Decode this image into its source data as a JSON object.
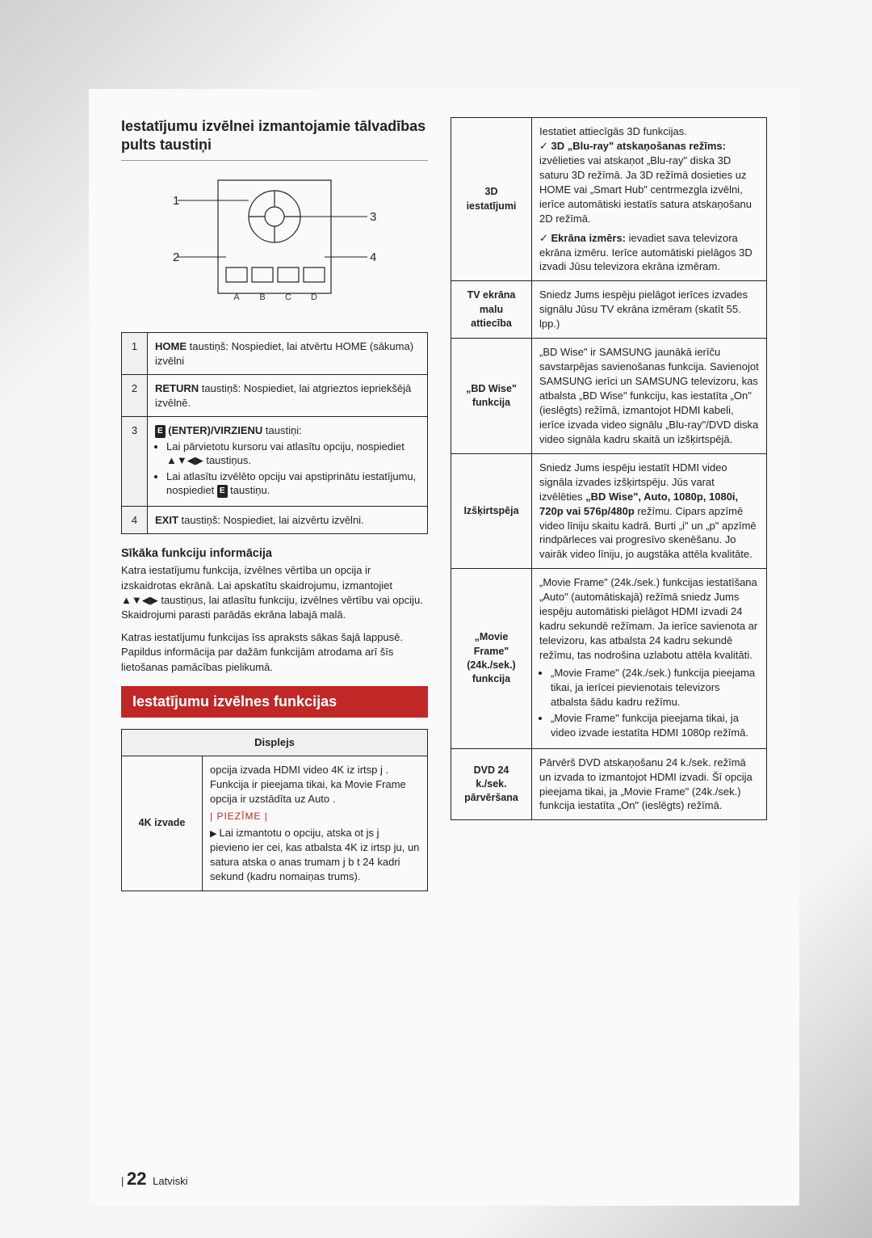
{
  "heading_remote": "Iestatījumu izvēlnei izmantojamie tālvadības pults taustiņi",
  "diagram": {
    "labels": {
      "n1": "1",
      "n2": "2",
      "n3": "3",
      "n4": "4",
      "a": "A",
      "b": "B",
      "c": "C",
      "d": "D"
    }
  },
  "controls": [
    {
      "num": "1",
      "html": "<b>HOME</b> taustiņš: Nospiediet, lai atvērtu HOME (sākuma) izvēlni"
    },
    {
      "num": "2",
      "html": "<b>RETURN</b> taustiņš: Nospiediet, lai atgrieztos iepriekšējā izvēlnē."
    },
    {
      "num": "3",
      "html": "<span class='icon-e'>E</span> <b>(ENTER)/VIRZIENU</b> taustiņi:<ul><li>Lai pārvietotu kursoru vai atlasītu opciju, nospiediet ▲▼◀▶ taustiņus.</li><li>Lai atlasītu izvēlēto opciju vai apstiprinātu iestatījumu, nospiediet <span class='icon-e'>E</span> taustiņu.</li></ul>"
    },
    {
      "num": "4",
      "html": "<b>EXIT</b> taustiņš: Nospiediet, lai aizvērtu izvēlni."
    }
  ],
  "subhead_detail": "Sīkāka funkciju informācija",
  "detail_p1": "Katra iestatījumu funkcija, izvēlnes vērtība un opcija ir izskaidrotas ekrānā. Lai apskatītu skaidrojumu, izmantojiet ▲▼◀▶ taustiņus, lai atlasītu funkciju, izvēlnes vērtību vai opciju. Skaidrojumi parasti parādās ekrāna labajā malā.",
  "detail_p2": "Katras iestatījumu funkcijas īss apraksts sākas šajā lappusē. Papildus informācija par dažām funkcijām atrodama arī šīs lietošanas pamācības pielikumā.",
  "section_title": "Iestatījumu izvēlnes funkcijas",
  "display_header": "Displejs",
  "left_rows": [
    {
      "label": "4K izvade",
      "html": "opcija izvada HDMI video 4K iz irtsp j . Funkcija ir pieejama tikai, ka  Movie Frame  opcija ir uzstādīta uz  Auto .<div class='piezime'>PIEZĪME</div><div class='tri'>Lai izmantotu o opciju, atska ot js j pievieno ier cei, kas atbalsta 4K iz irtsp ju, un satura atska o anas trumam j b t 24 kadri sekund (kadru nomaiņas trums).</div>"
    }
  ],
  "right_rows": [
    {
      "label": "3D iestatījumi",
      "html": "Iestatiet attiecīgās 3D funkcijas.<div class='check'><b>3D „Blu-ray\" atskaņošanas režīms:</b> izvēlieties vai atskaņot „Blu-ray\" diska 3D saturu 3D režīmā. Ja 3D režīmā dosieties uz HOME vai „Smart Hub\" centrmezgla izvēlni, ierīce automātiski iestatīs satura atskaņošanu 2D režīmā.</div><div class='check' style='margin-top:6px'><b>Ekrāna izmērs:</b> ievadiet sava televizora ekrāna izmēru. Ierīce automātiski pielāgos 3D izvadi Jūsu televizora ekrāna izmēram.</div>"
    },
    {
      "label": "TV ekrāna malu attiecība",
      "html": "Sniedz Jums iespēju pielāgot ierīces izvades signālu Jūsu TV ekrāna izmēram (skatīt 55. lpp.)"
    },
    {
      "label": "„BD Wise\" funkcija",
      "html": "„BD Wise\" ir SAMSUNG jaunākā ierīču savstarpējas savienošanas funkcija. Savienojot SAMSUNG ierīci un SAMSUNG televizoru, kas atbalsta „BD Wise\" funkciju, kas iestatīta „On\" (ieslēgts) režīmā, izmantojot HDMI kabeli, ierīce izvada video signālu „Blu-ray\"/DVD diska video signāla kadru skaitā un izšķirtspējā."
    },
    {
      "label": "Izšķirtspēja",
      "html": "Sniedz Jums iespēju iestatīt HDMI video signāla izvades izšķirtspēju. Jūs varat izvēlēties <b>„BD Wise\", Auto, 1080p, 1080i, 720p vai 576p/480p</b> režīmu. Cipars apzīmē video līniju skaitu kadrā. Burti „i\" un „p\" apzīmē rindpārleces vai progresīvo skenēšanu. Jo vairāk video līniju, jo augstāka attēla kvalitāte."
    },
    {
      "label": "„Movie Frame\" (24k./sek.) funkcija",
      "html": "„Movie Frame\" (24k./sek.) funkcijas iestatīšana „Auto\" (automātiskajā) režīmā sniedz Jums iespēju automātiski pielāgot HDMI izvadi 24 kadru sekundē režīmam. Ja ierīce savienota ar televizoru, kas atbalsta 24 kadru sekundē režīmu, tas nodrošina uzlabotu attēla kvalitāti.<ul><li>„Movie Frame\" (24k./sek.) funkcija pieejama tikai, ja ierīcei pievienotais televizors atbalsta šādu kadru režīmu.</li><li>„Movie Frame\" funkcija pieejama tikai, ja video izvade iestatīta HDMI 1080p režīmā.</li></ul>"
    },
    {
      "label": "DVD 24 k./sek. pārvēršana",
      "html": "Pārvērš DVD atskaņošanu 24 k./sek. režīmā un izvada to izmantojot HDMI izvadi. Šī opcija pieejama tikai, ja „Movie Frame\" (24k./sek.) funkcija iestatīta „On\" (ieslēgts) režīmā."
    }
  ],
  "footer": {
    "page": "22",
    "lang": "Latviski"
  }
}
